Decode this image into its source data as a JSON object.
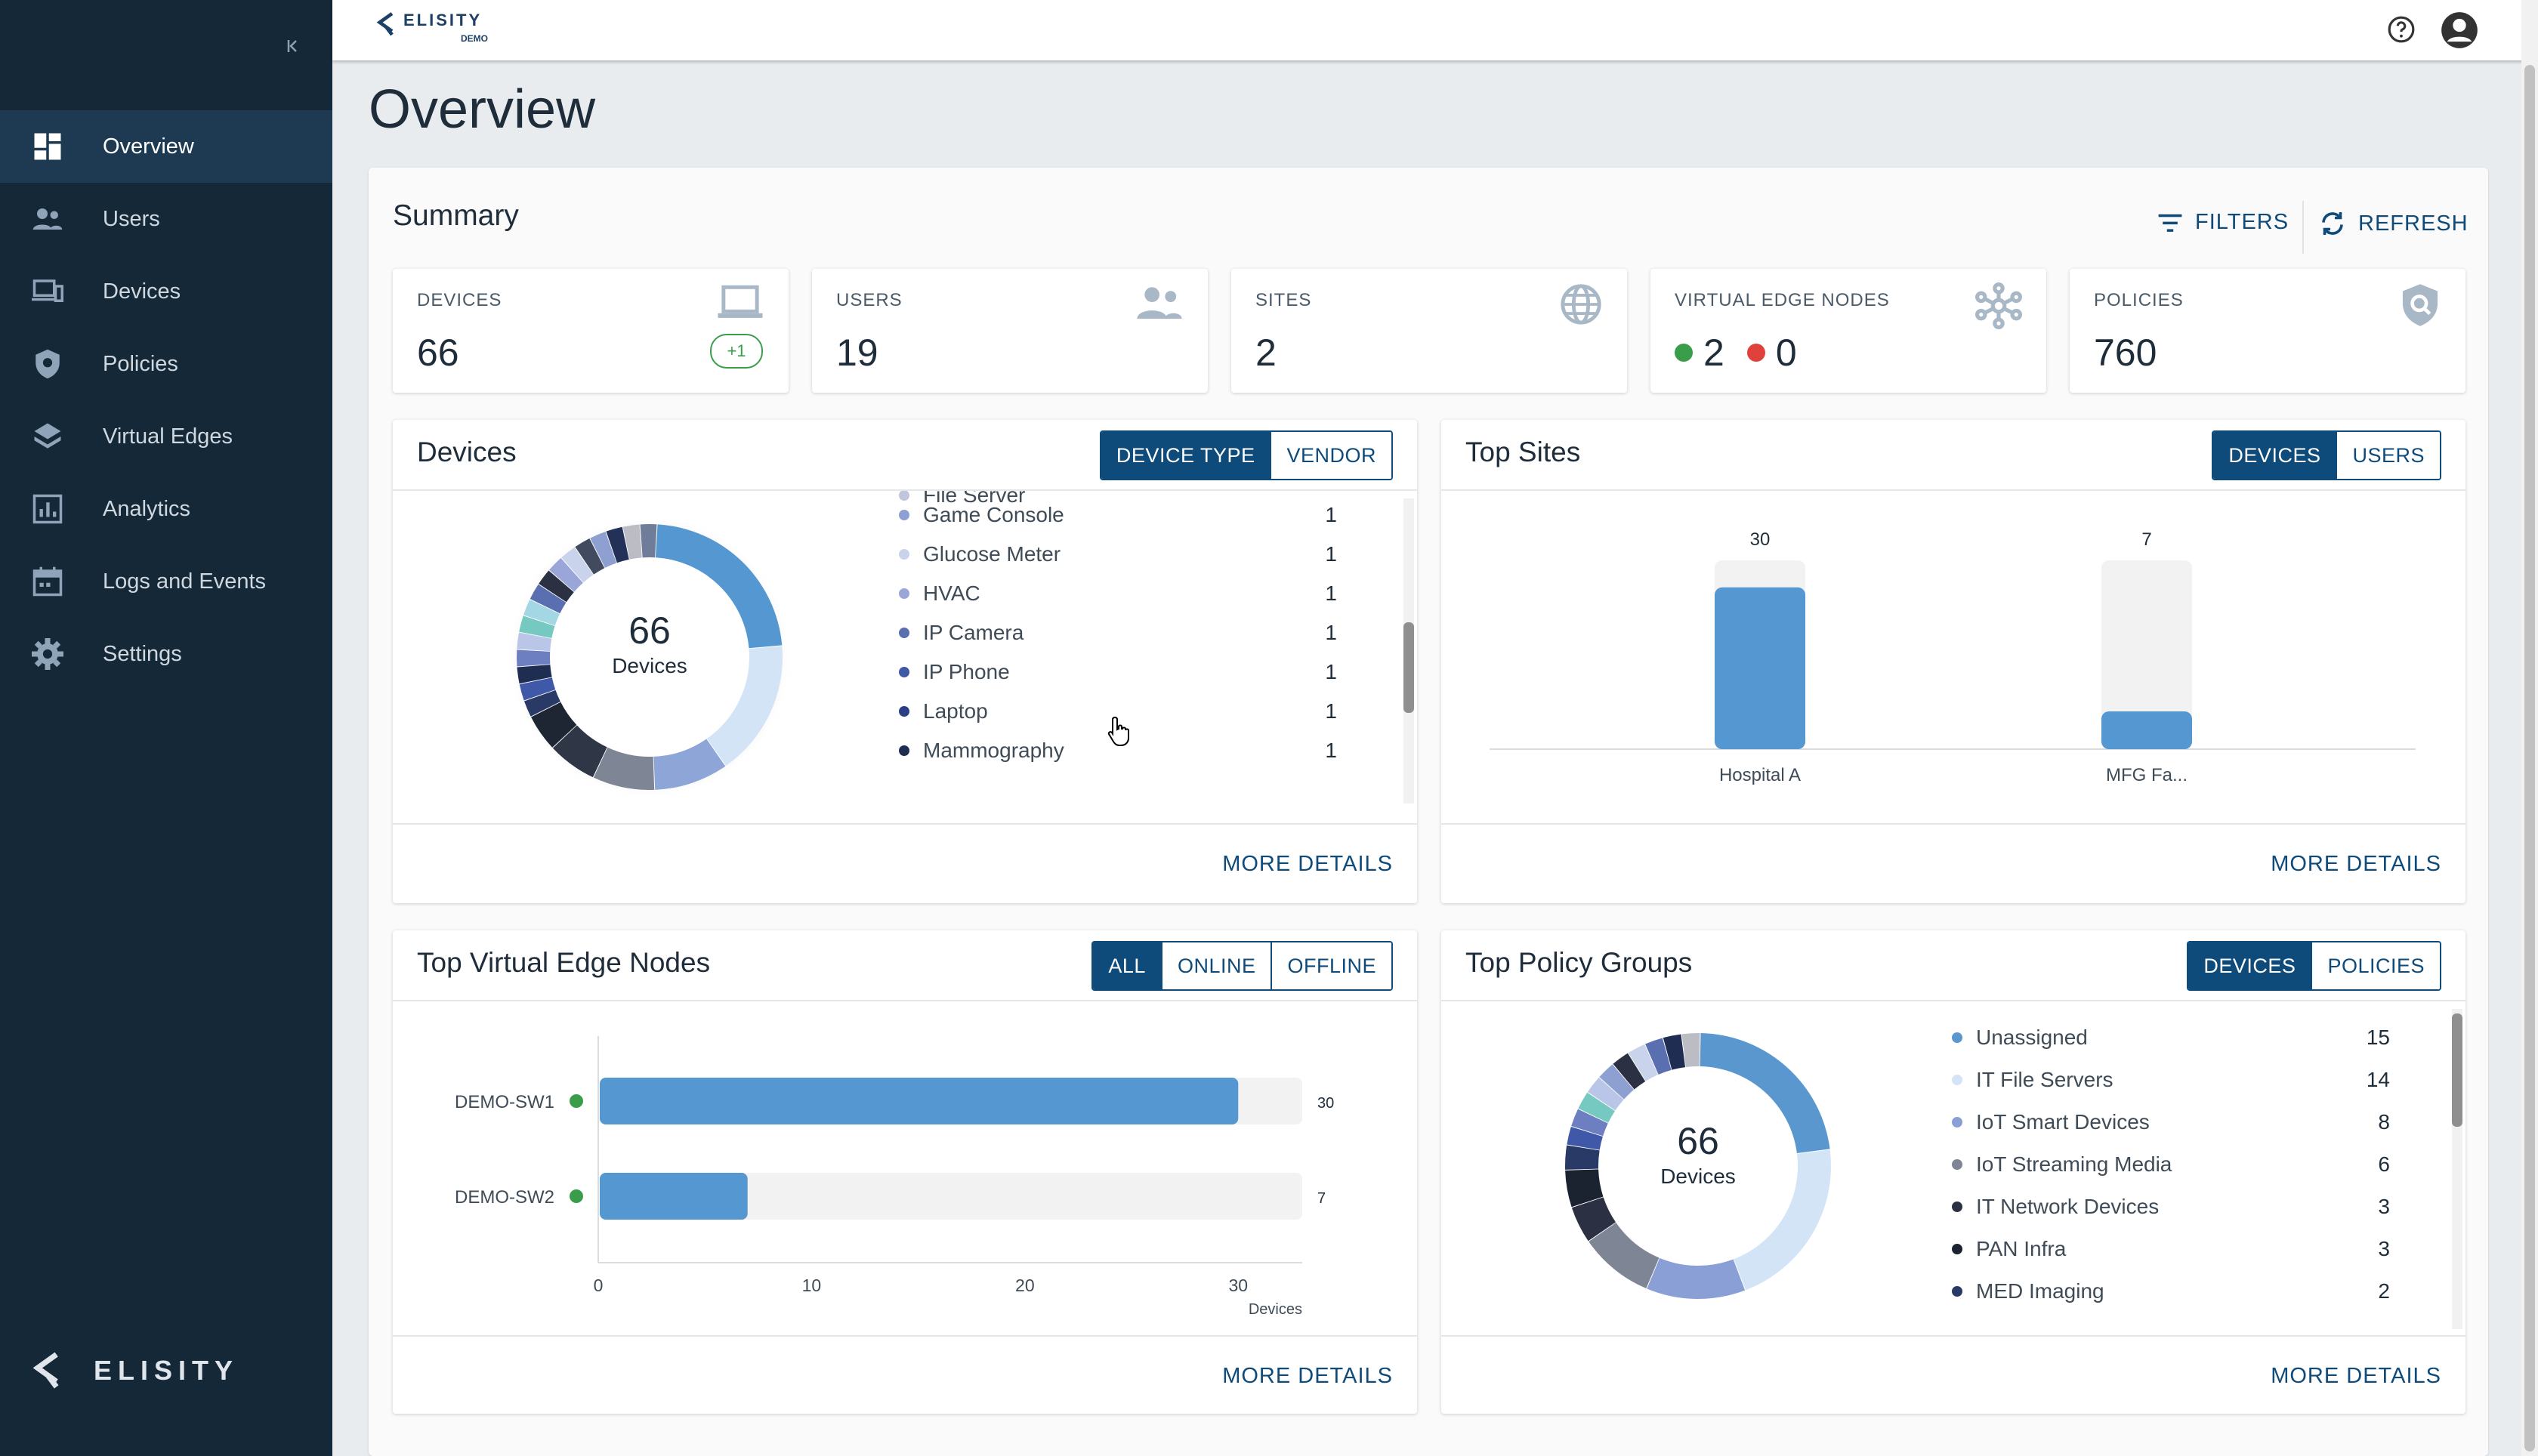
{
  "sidebar": {
    "collapse_icon": "collapse-left-icon",
    "items": [
      {
        "label": "Overview",
        "icon": "dashboard-icon"
      },
      {
        "label": "Users",
        "icon": "users-icon"
      },
      {
        "label": "Devices",
        "icon": "devices-icon"
      },
      {
        "label": "Policies",
        "icon": "shield-icon"
      },
      {
        "label": "Virtual Edges",
        "icon": "layers-icon"
      },
      {
        "label": "Analytics",
        "icon": "bar-chart-icon"
      },
      {
        "label": "Logs and Events",
        "icon": "calendar-icon"
      },
      {
        "label": "Settings",
        "icon": "gear-icon"
      }
    ],
    "active_index": 0,
    "brand_wordmark": "ELISITY"
  },
  "topbar": {
    "brand_text": "ELISITY",
    "brand_sub": "DEMO",
    "help_icon": "help-circle-icon",
    "avatar_icon": "account-circle-icon"
  },
  "page": {
    "title": "Overview"
  },
  "summary": {
    "title": "Summary",
    "filters_label": "FILTERS",
    "refresh_label": "REFRESH",
    "cards": {
      "devices": {
        "label": "DEVICES",
        "value": "66",
        "delta": "+1",
        "icon": "laptop-icon"
      },
      "users": {
        "label": "USERS",
        "value": "19",
        "icon": "users-icon"
      },
      "sites": {
        "label": "SITES",
        "value": "2",
        "icon": "globe-icon"
      },
      "ven": {
        "label": "VIRTUAL EDGE NODES",
        "online": "2",
        "offline": "0",
        "online_color": "#3a9d4a",
        "offline_color": "#e0413a",
        "icon": "hub-icon"
      },
      "policies": {
        "label": "POLICIES",
        "value": "760",
        "icon": "shield-search-icon"
      }
    }
  },
  "devices_panel": {
    "title": "Devices",
    "tabs": [
      "DEVICE TYPE",
      "VENDOR"
    ],
    "active_tab": 0,
    "total": "66",
    "total_label": "Devices",
    "cutoff_label": "File Server",
    "legend": [
      {
        "label": "Game Console",
        "value": "1",
        "color": "#8e9fd2"
      },
      {
        "label": "Glucose Meter",
        "value": "1",
        "color": "#c9d3ec"
      },
      {
        "label": "HVAC",
        "value": "1",
        "color": "#9aa6d8"
      },
      {
        "label": "IP Camera",
        "value": "1",
        "color": "#5a6fb0"
      },
      {
        "label": "IP Phone",
        "value": "1",
        "color": "#3f58a8"
      },
      {
        "label": "Laptop",
        "value": "1",
        "color": "#2a3f86"
      },
      {
        "label": "Mammography",
        "value": "1",
        "color": "#1f2d52"
      }
    ],
    "more_details": "MORE DETAILS"
  },
  "top_sites": {
    "title": "Top Sites",
    "tabs": [
      "DEVICES",
      "USERS"
    ],
    "active_tab": 0,
    "more_details": "MORE DETAILS"
  },
  "top_ven": {
    "title": "Top Virtual Edge Nodes",
    "tabs": [
      "ALL",
      "ONLINE",
      "OFFLINE"
    ],
    "active_tab": 0,
    "more_details": "MORE DETAILS"
  },
  "top_policy_groups": {
    "title": "Top Policy Groups",
    "tabs": [
      "DEVICES",
      "POLICIES"
    ],
    "active_tab": 0,
    "total": "66",
    "total_label": "Devices",
    "legend": [
      {
        "label": "Unassigned",
        "value": "15",
        "color": "#5a97cf"
      },
      {
        "label": "IT File Servers",
        "value": "14",
        "color": "#d4e4f7"
      },
      {
        "label": "IoT Smart Devices",
        "value": "8",
        "color": "#8a9fd6"
      },
      {
        "label": "IoT Streaming Media",
        "value": "6",
        "color": "#7e8594"
      },
      {
        "label": "IT Network Devices",
        "value": "3",
        "color": "#2b3142"
      },
      {
        "label": "PAN Infra",
        "value": "3",
        "color": "#1b2330"
      },
      {
        "label": "MED Imaging",
        "value": "2",
        "color": "#2a3a66"
      }
    ],
    "more_details": "MORE DETAILS"
  },
  "chart_data": [
    {
      "type": "bar",
      "title": "Top Sites",
      "categories": [
        "Hospital A",
        "MFG Fa..."
      ],
      "values": [
        30,
        7
      ],
      "ylim": [
        0,
        35
      ],
      "color": "#5597d0"
    },
    {
      "type": "bar",
      "orientation": "horizontal",
      "title": "Top Virtual Edge Nodes",
      "categories": [
        "DEMO-SW1",
        "DEMO-SW2"
      ],
      "values": [
        30,
        7
      ],
      "status": [
        "online",
        "online"
      ],
      "xlim": [
        0,
        33
      ],
      "xticks": [
        0,
        10,
        20,
        30
      ],
      "xlabel": "Devices",
      "color": "#5597d0"
    },
    {
      "type": "pie",
      "title": "Devices",
      "donut": true,
      "total": 66,
      "slices": [
        {
          "label": "Game Console",
          "value": 1
        },
        {
          "label": "Glucose Meter",
          "value": 1
        },
        {
          "label": "HVAC",
          "value": 1
        },
        {
          "label": "IP Camera",
          "value": 1
        },
        {
          "label": "IP Phone",
          "value": 1
        },
        {
          "label": "Laptop",
          "value": 1
        },
        {
          "label": "Mammography",
          "value": 1
        }
      ]
    },
    {
      "type": "pie",
      "title": "Top Policy Groups",
      "donut": true,
      "total": 66,
      "slices": [
        {
          "label": "Unassigned",
          "value": 15
        },
        {
          "label": "IT File Servers",
          "value": 14
        },
        {
          "label": "IoT Smart Devices",
          "value": 8
        },
        {
          "label": "IoT Streaming Media",
          "value": 6
        },
        {
          "label": "IT Network Devices",
          "value": 3
        },
        {
          "label": "PAN Infra",
          "value": 3
        },
        {
          "label": "MED Imaging",
          "value": 2
        }
      ]
    }
  ]
}
